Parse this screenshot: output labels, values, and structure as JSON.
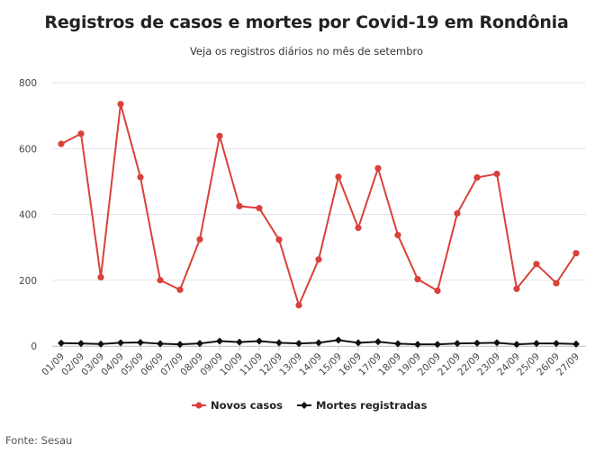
{
  "chart_data": {
    "type": "line",
    "title": "Registros de casos e mortes por Covid-19 em Rondônia",
    "subtitle": "Veja os registros diários no mês de setembro",
    "source": "Fonte: Sesau",
    "categories": [
      "01/09",
      "02/09",
      "03/09",
      "04/09",
      "05/09",
      "06/09",
      "07/09",
      "08/09",
      "09/09",
      "10/09",
      "11/09",
      "12/09",
      "13/09",
      "14/09",
      "15/09",
      "16/09",
      "17/09",
      "18/09",
      "19/09",
      "20/09",
      "21/09",
      "22/09",
      "23/09",
      "24/09",
      "25/09",
      "26/09",
      "27/09"
    ],
    "series": [
      {
        "name": "Novos casos",
        "color": "#d9413a",
        "values": [
          614,
          645,
          209,
          735,
          513,
          200,
          171,
          324,
          638,
          425,
          419,
          323,
          124,
          263,
          514,
          359,
          540,
          337,
          203,
          168,
          403,
          512,
          523,
          174,
          249,
          191,
          282
        ]
      },
      {
        "name": "Mortes registradas",
        "color": "#111111",
        "values": [
          9,
          8,
          6,
          10,
          11,
          7,
          5,
          8,
          15,
          12,
          15,
          10,
          8,
          10,
          18,
          10,
          13,
          7,
          5,
          5,
          8,
          9,
          10,
          5,
          8,
          8,
          6
        ]
      }
    ],
    "yticks": [
      0,
      200,
      400,
      600,
      800
    ],
    "ylim": [
      0,
      800
    ],
    "grid": true,
    "legend": "bottom-center"
  }
}
